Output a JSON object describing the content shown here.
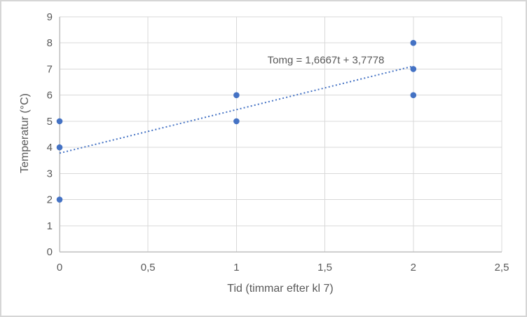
{
  "chart_data": {
    "type": "scatter",
    "xlabel": "Tid (timmar efter kl 7)",
    "ylabel": "Temperatur (°C)",
    "xlim": [
      0,
      2.5
    ],
    "ylim": [
      0,
      9
    ],
    "grid": true,
    "x_ticks": [
      {
        "v": 0,
        "label": "0"
      },
      {
        "v": 0.5,
        "label": "0,5"
      },
      {
        "v": 1,
        "label": "1"
      },
      {
        "v": 1.5,
        "label": "1,5"
      },
      {
        "v": 2,
        "label": "2"
      },
      {
        "v": 2.5,
        "label": "2,5"
      }
    ],
    "y_ticks": [
      {
        "v": 0,
        "label": "0"
      },
      {
        "v": 1,
        "label": "1"
      },
      {
        "v": 2,
        "label": "2"
      },
      {
        "v": 3,
        "label": "3"
      },
      {
        "v": 4,
        "label": "4"
      },
      {
        "v": 5,
        "label": "5"
      },
      {
        "v": 6,
        "label": "6"
      },
      {
        "v": 7,
        "label": "7"
      },
      {
        "v": 8,
        "label": "8"
      },
      {
        "v": 9,
        "label": "9"
      }
    ],
    "points": [
      {
        "x": 0,
        "y": 2
      },
      {
        "x": 0,
        "y": 4
      },
      {
        "x": 0,
        "y": 5
      },
      {
        "x": 1,
        "y": 5
      },
      {
        "x": 1,
        "y": 6
      },
      {
        "x": 2,
        "y": 6
      },
      {
        "x": 2,
        "y": 7
      },
      {
        "x": 2,
        "y": 8
      }
    ],
    "trendline": {
      "label": "Tomg = 1,6667t + 3,7778",
      "slope": 1.6667,
      "intercept": 3.7778,
      "x_start": 0,
      "x_end": 2,
      "style": "dotted"
    },
    "colors": {
      "marker": "#4472C4",
      "trendline": "#4472C4",
      "gridline": "#D9D9D9",
      "axis_line": "#BFBFBF",
      "text": "#595959",
      "frame_border": "#D6D6D6",
      "background": "#FFFFFF"
    }
  }
}
